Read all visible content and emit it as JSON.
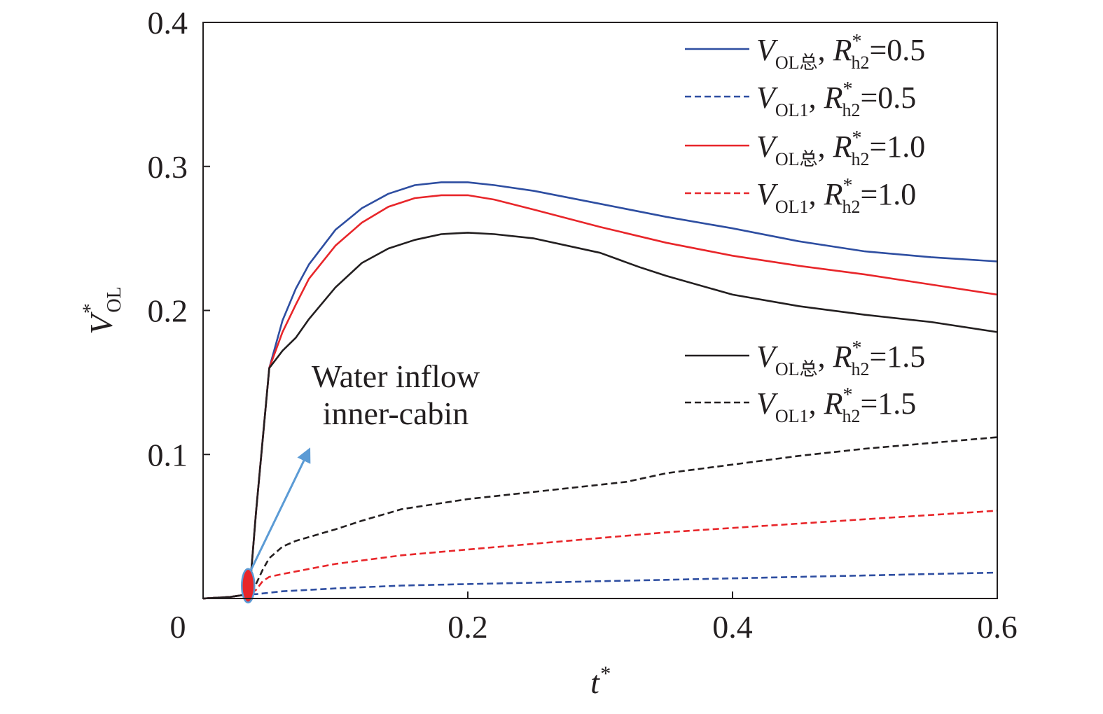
{
  "chart_data": {
    "type": "line",
    "xlabel": {
      "main": "t",
      "sup": "*"
    },
    "ylabel": {
      "main": "V",
      "sup": "*",
      "sub": "OL"
    },
    "xlim": [
      0,
      0.6
    ],
    "ylim": [
      0,
      0.4
    ],
    "xticks": [
      {
        "value": 0,
        "label": "0"
      },
      {
        "value": 0.2,
        "label": "0.2"
      },
      {
        "value": 0.4,
        "label": "0.4"
      },
      {
        "value": 0.6,
        "label": "0.6"
      }
    ],
    "yticks": [
      {
        "value": 0.1,
        "label": "0.1"
      },
      {
        "value": 0.2,
        "label": "0.2"
      },
      {
        "value": 0.3,
        "label": "0.3"
      },
      {
        "value": 0.4,
        "label": "0.4"
      }
    ],
    "grid": false,
    "legend_position": "top-right",
    "annotation": {
      "lines": [
        "Water inflow",
        "inner-cabin"
      ],
      "point": [
        0.034,
        0.005
      ],
      "arrow_to": [
        0.08,
        0.103
      ],
      "arrow_color": "#5b9bd5",
      "marker_color": "#e8262a"
    },
    "series": [
      {
        "legend": {
          "v": "V",
          "sub": "OL总",
          "r": "R",
          "rsup": "*",
          "rsub": "h2",
          "value": "=0.5"
        },
        "color": "#2e4ea1",
        "dash": "solid",
        "x": [
          0,
          0.02,
          0.035,
          0.04,
          0.05,
          0.06,
          0.07,
          0.08,
          0.1,
          0.12,
          0.14,
          0.16,
          0.18,
          0.2,
          0.22,
          0.25,
          0.3,
          0.35,
          0.4,
          0.45,
          0.5,
          0.55,
          0.6
        ],
        "y": [
          0,
          0.001,
          0.003,
          0.06,
          0.16,
          0.193,
          0.215,
          0.232,
          0.256,
          0.271,
          0.281,
          0.287,
          0.289,
          0.289,
          0.287,
          0.283,
          0.274,
          0.265,
          0.257,
          0.248,
          0.241,
          0.237,
          0.234
        ]
      },
      {
        "legend": {
          "v": "V",
          "sub": "OL1",
          "r": "R",
          "rsup": "*",
          "rsub": "h2",
          "value": "=0.5"
        },
        "color": "#2e4ea1",
        "dash": "dashed",
        "x": [
          0,
          0.02,
          0.035,
          0.04,
          0.05,
          0.06,
          0.1,
          0.15,
          0.2,
          0.25,
          0.3,
          0.35,
          0.4,
          0.45,
          0.5,
          0.55,
          0.6
        ],
        "y": [
          0,
          0.001,
          0.003,
          0.003,
          0.004,
          0.005,
          0.007,
          0.009,
          0.01,
          0.011,
          0.012,
          0.013,
          0.014,
          0.015,
          0.016,
          0.017,
          0.018
        ]
      },
      {
        "legend": {
          "v": "V",
          "sub": "OL总",
          "r": "R",
          "rsup": "*",
          "rsub": "h2",
          "value": "=1.0"
        },
        "color": "#e8262a",
        "dash": "solid",
        "x": [
          0,
          0.02,
          0.035,
          0.04,
          0.05,
          0.06,
          0.07,
          0.08,
          0.1,
          0.12,
          0.14,
          0.16,
          0.18,
          0.2,
          0.22,
          0.25,
          0.3,
          0.35,
          0.4,
          0.45,
          0.5,
          0.55,
          0.6
        ],
        "y": [
          0,
          0.001,
          0.003,
          0.06,
          0.16,
          0.185,
          0.204,
          0.222,
          0.245,
          0.261,
          0.272,
          0.278,
          0.28,
          0.28,
          0.277,
          0.27,
          0.258,
          0.247,
          0.238,
          0.231,
          0.225,
          0.218,
          0.211
        ]
      },
      {
        "legend": {
          "v": "V",
          "sub": "OL1",
          "r": "R",
          "rsup": "*",
          "rsub": "h2",
          "value": "=1.0"
        },
        "color": "#e8262a",
        "dash": "dashed",
        "x": [
          0,
          0.02,
          0.035,
          0.04,
          0.045,
          0.05,
          0.06,
          0.1,
          0.15,
          0.2,
          0.25,
          0.3,
          0.35,
          0.4,
          0.45,
          0.5,
          0.55,
          0.6
        ],
        "y": [
          0,
          0.001,
          0.003,
          0.006,
          0.012,
          0.015,
          0.017,
          0.024,
          0.03,
          0.034,
          0.038,
          0.042,
          0.046,
          0.049,
          0.052,
          0.055,
          0.058,
          0.061
        ]
      },
      {
        "legend": {
          "v": "V",
          "sub": "OL总",
          "r": "R",
          "rsup": "*",
          "rsub": "h2",
          "value": "=1.5"
        },
        "color": "#231f20",
        "dash": "solid",
        "x": [
          0,
          0.02,
          0.035,
          0.04,
          0.05,
          0.06,
          0.07,
          0.08,
          0.1,
          0.12,
          0.14,
          0.16,
          0.18,
          0.2,
          0.22,
          0.25,
          0.3,
          0.33,
          0.35,
          0.4,
          0.45,
          0.5,
          0.55,
          0.6
        ],
        "y": [
          0,
          0.001,
          0.003,
          0.06,
          0.16,
          0.172,
          0.181,
          0.194,
          0.216,
          0.233,
          0.243,
          0.249,
          0.253,
          0.254,
          0.253,
          0.25,
          0.24,
          0.23,
          0.224,
          0.211,
          0.203,
          0.197,
          0.192,
          0.185
        ]
      },
      {
        "legend": {
          "v": "V",
          "sub": "OL1",
          "r": "R",
          "rsup": "*",
          "rsub": "h2",
          "value": "=1.5"
        },
        "color": "#231f20",
        "dash": "dashed",
        "x": [
          0,
          0.02,
          0.035,
          0.04,
          0.045,
          0.05,
          0.06,
          0.07,
          0.1,
          0.12,
          0.15,
          0.2,
          0.25,
          0.3,
          0.32,
          0.35,
          0.4,
          0.45,
          0.5,
          0.55,
          0.6
        ],
        "y": [
          0,
          0.001,
          0.003,
          0.01,
          0.02,
          0.028,
          0.036,
          0.04,
          0.048,
          0.054,
          0.062,
          0.069,
          0.074,
          0.079,
          0.081,
          0.087,
          0.093,
          0.099,
          0.104,
          0.108,
          0.112
        ]
      }
    ]
  }
}
